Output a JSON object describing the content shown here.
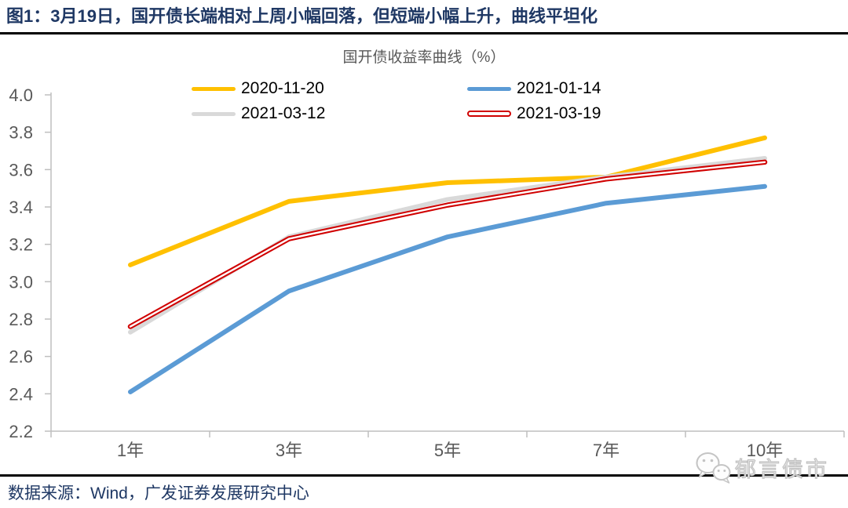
{
  "header": {
    "title": "图1：3月19日，国开债长端相对上周小幅回落，但短端小幅上升，曲线平坦化"
  },
  "chart_data": {
    "type": "line",
    "title": "国开债收益率曲线（%）",
    "categories": [
      "1年",
      "3年",
      "5年",
      "7年",
      "10年"
    ],
    "series": [
      {
        "name": "2020-11-20",
        "color": "#FFC000",
        "style": "solid",
        "values": [
          3.09,
          3.43,
          3.53,
          3.56,
          3.77
        ]
      },
      {
        "name": "2021-01-14",
        "color": "#5B9BD5",
        "style": "solid",
        "values": [
          2.41,
          2.95,
          3.24,
          3.42,
          3.51
        ]
      },
      {
        "name": "2021-03-12",
        "color": "#D9D9D9",
        "style": "solid",
        "values": [
          2.73,
          3.24,
          3.44,
          3.56,
          3.66
        ]
      },
      {
        "name": "2021-03-19",
        "color": "#D00000",
        "style": "double",
        "values": [
          2.76,
          3.23,
          3.41,
          3.55,
          3.64
        ]
      }
    ],
    "xlabel": "",
    "ylabel": "",
    "ylim": [
      2.2,
      4.0
    ],
    "ytick_step": 0.2,
    "grid": false,
    "legend_position": "top",
    "axis_color": "#BFBFBF",
    "label_color": "#595959"
  },
  "watermark": {
    "icon": "wechat-icon",
    "label": "郁言债市"
  },
  "footer": {
    "source": "数据来源：Wind，广发证券发展研究中心"
  }
}
